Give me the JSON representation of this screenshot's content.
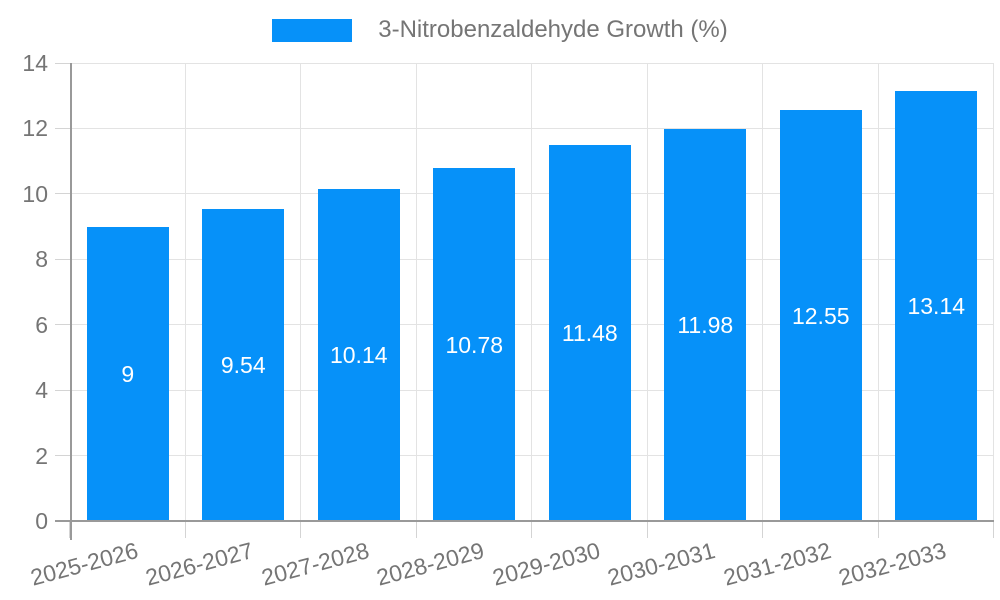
{
  "legend": {
    "label": "3-Nitrobenzaldehyde Growth (%)"
  },
  "chart_data": {
    "type": "bar",
    "title": "3-Nitrobenzaldehyde Growth (%)",
    "categories": [
      "2025-2026",
      "2026-2027",
      "2027-2028",
      "2028-2029",
      "2029-2030",
      "2030-2031",
      "2031-2032",
      "2032-2033"
    ],
    "values": [
      9,
      9.54,
      10.14,
      10.78,
      11.48,
      11.98,
      12.55,
      13.14
    ],
    "value_labels": [
      "9",
      "9.54",
      "10.14",
      "10.78",
      "11.48",
      "11.98",
      "12.55",
      "13.14"
    ],
    "xlabel": "",
    "ylabel": "",
    "ylim": [
      0,
      14
    ],
    "yticks": [
      0,
      2,
      4,
      6,
      8,
      10,
      12,
      14
    ],
    "grid": true,
    "legend_position": "top-center",
    "bar_labels_inside": true,
    "colors": {
      "bar": "#0691f9",
      "axis_label": "#757575",
      "legend_text": "#757575",
      "gridline": "#e3e3e3",
      "tick": "#d4d4d4",
      "axis_line": "#999999",
      "bar_label": "#ffffff",
      "background": "#ffffff"
    }
  }
}
